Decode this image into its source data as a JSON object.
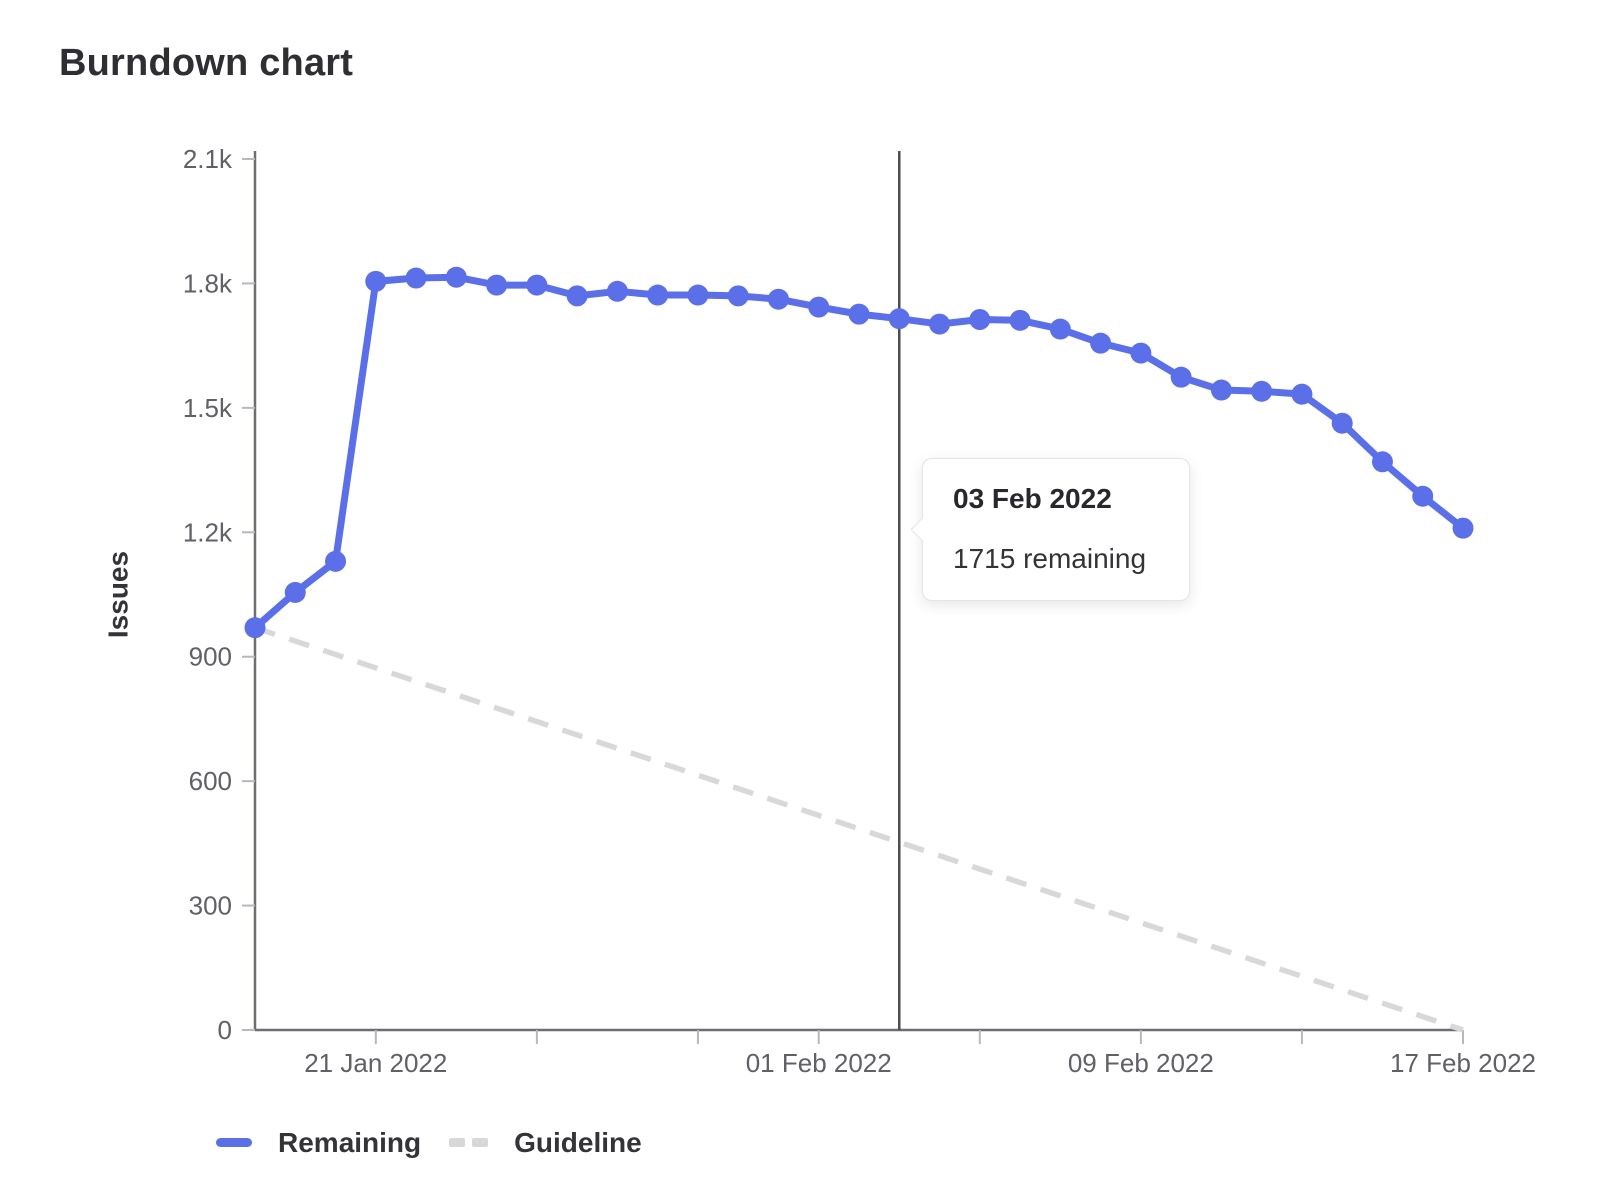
{
  "page": {
    "title": "Burndown chart"
  },
  "colors": {
    "remaining_blue": "#5b70e8",
    "guideline_gray": "#d8d8d8",
    "axis_line": "#6d6d74",
    "tick_mark": "#b8b8bc",
    "tick_text": "#606066",
    "today_line": "#4c4c52",
    "title_text": "#2f2f33"
  },
  "chart_data": {
    "type": "line",
    "title": "Burndown chart",
    "xlabel": "",
    "ylabel": "Issues",
    "ylim": [
      0,
      2100
    ],
    "grid": false,
    "legend_position": "bottom",
    "dates": [
      "18 Jan 2022",
      "19 Jan 2022",
      "20 Jan 2022",
      "21 Jan 2022",
      "22 Jan 2022",
      "23 Jan 2022",
      "24 Jan 2022",
      "25 Jan 2022",
      "26 Jan 2022",
      "27 Jan 2022",
      "28 Jan 2022",
      "29 Jan 2022",
      "30 Jan 2022",
      "31 Jan 2022",
      "01 Feb 2022",
      "02 Feb 2022",
      "03 Feb 2022",
      "04 Feb 2022",
      "05 Feb 2022",
      "06 Feb 2022",
      "07 Feb 2022",
      "08 Feb 2022",
      "09 Feb 2022",
      "10 Feb 2022",
      "11 Feb 2022",
      "12 Feb 2022",
      "13 Feb 2022",
      "14 Feb 2022",
      "15 Feb 2022",
      "16 Feb 2022",
      "17 Feb 2022"
    ],
    "series": [
      {
        "name": "Remaining",
        "style": "solid",
        "color": "#5b70e8",
        "values": [
          970,
          1055,
          1130,
          1805,
          1813,
          1815,
          1796,
          1796,
          1770,
          1781,
          1772,
          1772,
          1770,
          1762,
          1743,
          1726,
          1715,
          1702,
          1713,
          1711,
          1690,
          1656,
          1632,
          1574,
          1543,
          1540,
          1533,
          1463,
          1370,
          1287,
          1210
        ]
      },
      {
        "name": "Guideline",
        "style": "dashed",
        "color": "#d8d8d8",
        "points": [
          {
            "index": 0,
            "value": 970
          },
          {
            "index": 30,
            "value": 0
          }
        ]
      }
    ],
    "y_ticks": [
      {
        "value": 0,
        "label": "0"
      },
      {
        "value": 300,
        "label": "300"
      },
      {
        "value": 600,
        "label": "600"
      },
      {
        "value": 900,
        "label": "900"
      },
      {
        "value": 1200,
        "label": "1.2k"
      },
      {
        "value": 1500,
        "label": "1.5k"
      },
      {
        "value": 1800,
        "label": "1.8k"
      },
      {
        "value": 2100,
        "label": "2.1k"
      }
    ],
    "x_ticks": [
      {
        "index": 3,
        "label": "21 Jan 2022"
      },
      {
        "index": 7,
        "label": ""
      },
      {
        "index": 11,
        "label": ""
      },
      {
        "index": 14,
        "label": "01 Feb 2022"
      },
      {
        "index": 18,
        "label": ""
      },
      {
        "index": 22,
        "label": "09 Feb 2022"
      },
      {
        "index": 26,
        "label": ""
      },
      {
        "index": 30,
        "label": "17 Feb 2022"
      }
    ],
    "today_index": 16
  },
  "tooltip": {
    "title": "03 Feb 2022",
    "body": "1715 remaining"
  }
}
